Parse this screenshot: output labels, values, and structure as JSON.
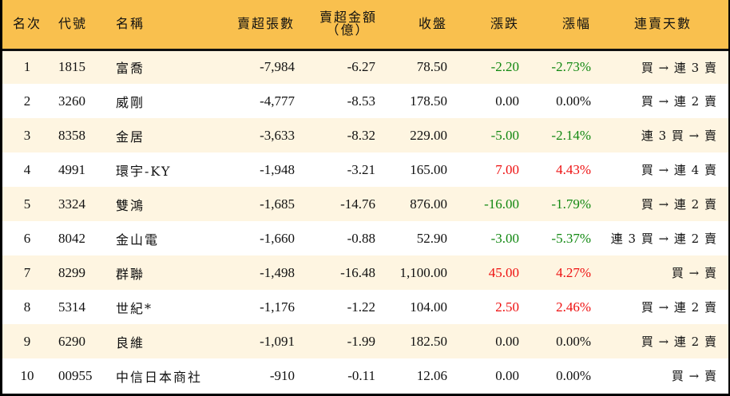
{
  "colors": {
    "header_bg": "#F9C04E",
    "row_odd_bg": "#FEF5E1",
    "row_even_bg": "#FFFFFF",
    "up": "#EE1111",
    "down": "#118811"
  },
  "table": {
    "headers": {
      "rank": "名次",
      "code": "代號",
      "name": "名稱",
      "net_sell_lots": "賣超張數",
      "net_sell_amount_line1": "賣超金額",
      "net_sell_amount_line2": "（億）",
      "close": "收盤",
      "change": "漲跌",
      "change_pct": "漲幅",
      "streak": "連賣天數"
    },
    "rows": [
      {
        "rank": "1",
        "code": "1815",
        "name": "富喬",
        "lots": "-7,984",
        "amount": "-6.27",
        "close": "78.50",
        "change": "-2.20",
        "pct": "-2.73%",
        "dir": "neg",
        "streak": "買 → 連 3 賣"
      },
      {
        "rank": "2",
        "code": "3260",
        "name": "威剛",
        "lots": "-4,777",
        "amount": "-8.53",
        "close": "178.50",
        "change": "0.00",
        "pct": "0.00%",
        "dir": "flat",
        "streak": "買 → 連 2 賣"
      },
      {
        "rank": "3",
        "code": "8358",
        "name": "金居",
        "lots": "-3,633",
        "amount": "-8.32",
        "close": "229.00",
        "change": "-5.00",
        "pct": "-2.14%",
        "dir": "neg",
        "streak": "連 3 買 → 賣"
      },
      {
        "rank": "4",
        "code": "4991",
        "name": "環宇-KY",
        "lots": "-1,948",
        "amount": "-3.21",
        "close": "165.00",
        "change": "7.00",
        "pct": "4.43%",
        "dir": "pos",
        "streak": "買 → 連 4 賣"
      },
      {
        "rank": "5",
        "code": "3324",
        "name": "雙鴻",
        "lots": "-1,685",
        "amount": "-14.76",
        "close": "876.00",
        "change": "-16.00",
        "pct": "-1.79%",
        "dir": "neg",
        "streak": "買 → 連 2 賣"
      },
      {
        "rank": "6",
        "code": "8042",
        "name": "金山電",
        "lots": "-1,660",
        "amount": "-0.88",
        "close": "52.90",
        "change": "-3.00",
        "pct": "-5.37%",
        "dir": "neg",
        "streak": "連 3 買 → 連 2 賣"
      },
      {
        "rank": "7",
        "code": "8299",
        "name": "群聯",
        "lots": "-1,498",
        "amount": "-16.48",
        "close": "1,100.00",
        "change": "45.00",
        "pct": "4.27%",
        "dir": "pos",
        "streak": "買 → 賣"
      },
      {
        "rank": "8",
        "code": "5314",
        "name": "世紀*",
        "lots": "-1,176",
        "amount": "-1.22",
        "close": "104.00",
        "change": "2.50",
        "pct": "2.46%",
        "dir": "pos",
        "streak": "買 → 連 2 賣"
      },
      {
        "rank": "9",
        "code": "6290",
        "name": "良維",
        "lots": "-1,091",
        "amount": "-1.99",
        "close": "182.50",
        "change": "0.00",
        "pct": "0.00%",
        "dir": "flat",
        "streak": "買 → 連 2 賣"
      },
      {
        "rank": "10",
        "code": "00955",
        "name": "中信日本商社",
        "lots": "-910",
        "amount": "-0.11",
        "close": "12.06",
        "change": "0.00",
        "pct": "0.00%",
        "dir": "flat",
        "streak": "買 → 賣"
      }
    ]
  }
}
